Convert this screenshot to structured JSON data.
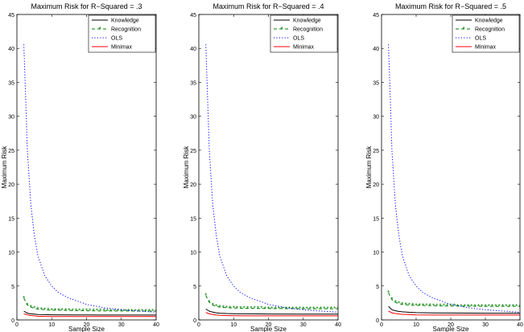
{
  "chart_data": [
    {
      "type": "line",
      "title": "Maximum Risk for R−Squared = .3",
      "xlabel": "Sample Size",
      "ylabel": "Maximum Risk",
      "xlim": [
        0,
        40
      ],
      "ylim": [
        0,
        45
      ],
      "xticks": [
        "0",
        "10",
        "20",
        "30",
        "40"
      ],
      "yticks": [
        "0",
        "5",
        "10",
        "15",
        "20",
        "25",
        "30",
        "35",
        "40",
        "45"
      ],
      "grid": false,
      "legend_position": "top-right",
      "series": [
        {
          "name": "Knowledge",
          "color": "#000000",
          "style": "solid",
          "x": [
            2,
            3,
            4,
            5,
            6,
            8,
            10,
            15,
            20,
            30,
            40
          ],
          "y": [
            1.3,
            1.0,
            0.9,
            0.85,
            0.8,
            0.78,
            0.76,
            0.74,
            0.73,
            0.72,
            0.72
          ]
        },
        {
          "name": "Recognition",
          "color": "#008000",
          "style": "star-dashed",
          "x": [
            2,
            3,
            4,
            5,
            6,
            8,
            10,
            15,
            20,
            30,
            40
          ],
          "y": [
            3.2,
            2.2,
            1.9,
            1.7,
            1.6,
            1.5,
            1.45,
            1.4,
            1.35,
            1.32,
            1.3
          ]
        },
        {
          "name": "OLS",
          "color": "#0000ff",
          "style": "dotted",
          "x": [
            2,
            2.5,
            3,
            4,
            5,
            6,
            8,
            10,
            12,
            15,
            20,
            25,
            30,
            35,
            40
          ],
          "y": [
            40.6,
            33,
            25,
            17,
            12.5,
            9.5,
            6.5,
            5,
            4,
            3.2,
            2.3,
            1.8,
            1.5,
            1.3,
            1.15
          ]
        },
        {
          "name": "Minimax",
          "color": "#ff0000",
          "style": "solid",
          "x": [
            2,
            3,
            4,
            5,
            6,
            8,
            10,
            15,
            20,
            30,
            40
          ],
          "y": [
            0.9,
            0.75,
            0.65,
            0.6,
            0.55,
            0.52,
            0.5,
            0.5,
            0.5,
            0.5,
            0.5
          ]
        }
      ]
    },
    {
      "type": "line",
      "title": "Maximum Risk for R−Squared = .4",
      "xlabel": "Sample Size",
      "ylabel": "Maximum Risk",
      "xlim": [
        0,
        40
      ],
      "ylim": [
        0,
        45
      ],
      "xticks": [
        "0",
        "10",
        "20",
        "30",
        "40"
      ],
      "yticks": [
        "0",
        "5",
        "10",
        "15",
        "20",
        "25",
        "30",
        "35",
        "40",
        "45"
      ],
      "grid": false,
      "legend_position": "top-right",
      "series": [
        {
          "name": "Knowledge",
          "color": "#000000",
          "style": "solid",
          "x": [
            2,
            3,
            4,
            5,
            6,
            8,
            10,
            15,
            20,
            30,
            40
          ],
          "y": [
            1.6,
            1.3,
            1.15,
            1.05,
            1.0,
            0.95,
            0.92,
            0.9,
            0.88,
            0.87,
            0.86
          ]
        },
        {
          "name": "Recognition",
          "color": "#008000",
          "style": "star-dashed",
          "x": [
            2,
            3,
            4,
            5,
            6,
            8,
            10,
            15,
            20,
            30,
            40
          ],
          "y": [
            3.6,
            2.6,
            2.2,
            2.0,
            1.9,
            1.8,
            1.75,
            1.7,
            1.68,
            1.65,
            1.65
          ]
        },
        {
          "name": "OLS",
          "color": "#0000ff",
          "style": "dotted",
          "x": [
            2,
            2.5,
            3,
            4,
            5,
            6,
            8,
            10,
            12,
            15,
            20,
            25,
            30,
            35,
            40
          ],
          "y": [
            40.6,
            33,
            25,
            17,
            12.5,
            9.5,
            6.5,
            5,
            4,
            3.2,
            2.3,
            1.8,
            1.5,
            1.3,
            1.15
          ]
        },
        {
          "name": "Minimax",
          "color": "#ff0000",
          "style": "solid",
          "x": [
            2,
            3,
            4,
            5,
            6,
            8,
            10,
            15,
            20,
            30,
            40
          ],
          "y": [
            1.1,
            0.9,
            0.8,
            0.72,
            0.68,
            0.64,
            0.62,
            0.6,
            0.6,
            0.6,
            0.6
          ]
        }
      ]
    },
    {
      "type": "line",
      "title": "Maximum Risk for R−Squared = .5",
      "xlabel": "Sample Size",
      "ylabel": "Maximum Risk",
      "xlim": [
        0,
        40
      ],
      "ylim": [
        0,
        45
      ],
      "xticks": [
        "0",
        "10",
        "20",
        "30",
        "40"
      ],
      "yticks": [
        "0",
        "5",
        "10",
        "15",
        "20",
        "25",
        "30",
        "35",
        "40",
        "45"
      ],
      "grid": false,
      "legend_position": "top-right",
      "series": [
        {
          "name": "Knowledge",
          "color": "#000000",
          "style": "solid",
          "x": [
            2,
            3,
            4,
            5,
            6,
            8,
            10,
            15,
            20,
            30,
            40
          ],
          "y": [
            2.0,
            1.5,
            1.35,
            1.25,
            1.2,
            1.12,
            1.08,
            1.04,
            1.02,
            1.0,
            1.0
          ]
        },
        {
          "name": "Recognition",
          "color": "#008000",
          "style": "star-dashed",
          "x": [
            2,
            3,
            4,
            5,
            6,
            8,
            10,
            15,
            20,
            30,
            40
          ],
          "y": [
            4.0,
            3.0,
            2.6,
            2.4,
            2.3,
            2.2,
            2.15,
            2.1,
            2.05,
            2.0,
            2.0
          ]
        },
        {
          "name": "OLS",
          "color": "#0000ff",
          "style": "dotted",
          "x": [
            2,
            2.5,
            3,
            4,
            5,
            6,
            8,
            10,
            12,
            15,
            20,
            25,
            30,
            35,
            40
          ],
          "y": [
            40.6,
            33,
            25,
            17,
            12.5,
            9.5,
            6.5,
            5,
            4,
            3.2,
            2.3,
            1.8,
            1.5,
            1.3,
            1.15
          ]
        },
        {
          "name": "Minimax",
          "color": "#ff0000",
          "style": "solid",
          "x": [
            2,
            3,
            4,
            5,
            6,
            8,
            10,
            15,
            20,
            30,
            40
          ],
          "y": [
            1.3,
            1.05,
            0.95,
            0.88,
            0.83,
            0.78,
            0.75,
            0.72,
            0.72,
            0.72,
            0.72
          ]
        }
      ]
    }
  ]
}
